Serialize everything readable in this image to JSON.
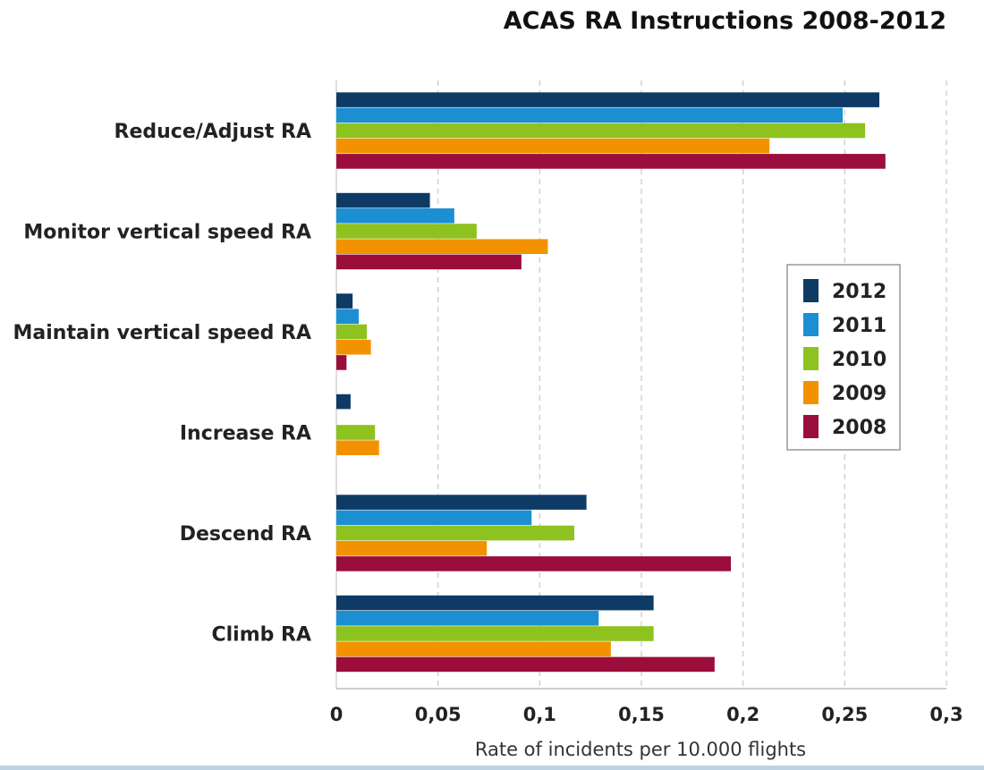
{
  "chart_data": {
    "type": "bar",
    "orientation": "horizontal",
    "title": "ACAS RA Instructions 2008-2012",
    "xlabel": "Rate of incidents per 10.000 flights",
    "ylabel": "",
    "xlim": [
      0,
      0.3
    ],
    "x_ticks": [
      0,
      0.05,
      0.1,
      0.15,
      0.2,
      0.25,
      0.3
    ],
    "x_tick_labels": [
      "0",
      "0,05",
      "0,1",
      "0,15",
      "0,2",
      "0,25",
      "0,3"
    ],
    "grid": "vertical dashed",
    "legend_position": "right",
    "categories": [
      "Reduce/Adjust RA",
      "Monitor vertical speed RA",
      "Maintain vertical speed RA",
      "Increase RA",
      "Descend RA",
      "Climb RA"
    ],
    "series": [
      {
        "name": "2012",
        "color": "#0d3b66",
        "values": [
          0.267,
          0.046,
          0.008,
          0.007,
          0.123,
          0.156
        ]
      },
      {
        "name": "2011",
        "color": "#1b8fd2",
        "values": [
          0.249,
          0.058,
          0.011,
          0,
          0.096,
          0.129
        ]
      },
      {
        "name": "2010",
        "color": "#8dc21f",
        "values": [
          0.26,
          0.069,
          0.015,
          0.019,
          0.117,
          0.156
        ]
      },
      {
        "name": "2009",
        "color": "#f39200",
        "values": [
          0.213,
          0.104,
          0.017,
          0.021,
          0.074,
          0.135
        ]
      },
      {
        "name": "2008",
        "color": "#9b0d3a",
        "values": [
          0.27,
          0.091,
          0.005,
          0,
          0.194,
          0.186
        ]
      }
    ]
  }
}
